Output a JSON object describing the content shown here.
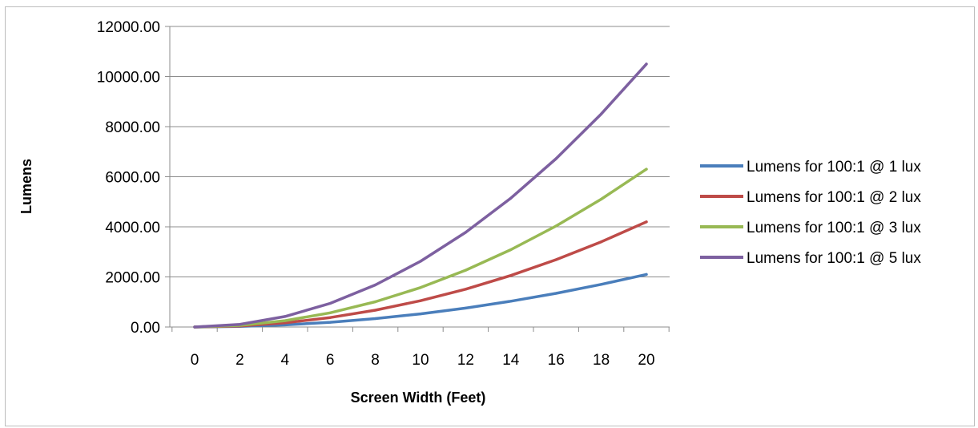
{
  "chart_data": {
    "type": "line",
    "title": "",
    "xlabel": "Screen Width (Feet)",
    "ylabel": "Lumens",
    "x": [
      0,
      2,
      4,
      6,
      8,
      10,
      12,
      14,
      16,
      18,
      20
    ],
    "xticks": [
      "0",
      "2",
      "4",
      "6",
      "8",
      "10",
      "12",
      "14",
      "16",
      "18",
      "20"
    ],
    "yticks": [
      "0.00",
      "2000.00",
      "4000.00",
      "6000.00",
      "8000.00",
      "10000.00",
      "12000.00"
    ],
    "ylim": [
      0,
      12000
    ],
    "xlim": [
      0,
      20
    ],
    "grid": "horizontal",
    "legend_position": "right",
    "series": [
      {
        "name": "Lumens for 100:1 @ 1 lux",
        "color": "#4a7ebb",
        "values": [
          0,
          21,
          84,
          189,
          336,
          525,
          756,
          1029,
          1344,
          1701,
          2100
        ]
      },
      {
        "name": "Lumens for 100:1 @ 2 lux",
        "color": "#be4b48",
        "values": [
          0,
          42,
          168,
          378,
          672,
          1050,
          1512,
          2058,
          2688,
          3402,
          4200
        ]
      },
      {
        "name": "Lumens for 100:1 @ 3 lux",
        "color": "#98b954",
        "values": [
          0,
          63,
          252,
          567,
          1008,
          1575,
          2268,
          3087,
          4032,
          5103,
          6300
        ]
      },
      {
        "name": "Lumens for 100:1 @ 5 lux",
        "color": "#7d60a0",
        "values": [
          0,
          105,
          420,
          945,
          1680,
          2625,
          3780,
          5145,
          6720,
          8505,
          10500
        ]
      }
    ]
  }
}
